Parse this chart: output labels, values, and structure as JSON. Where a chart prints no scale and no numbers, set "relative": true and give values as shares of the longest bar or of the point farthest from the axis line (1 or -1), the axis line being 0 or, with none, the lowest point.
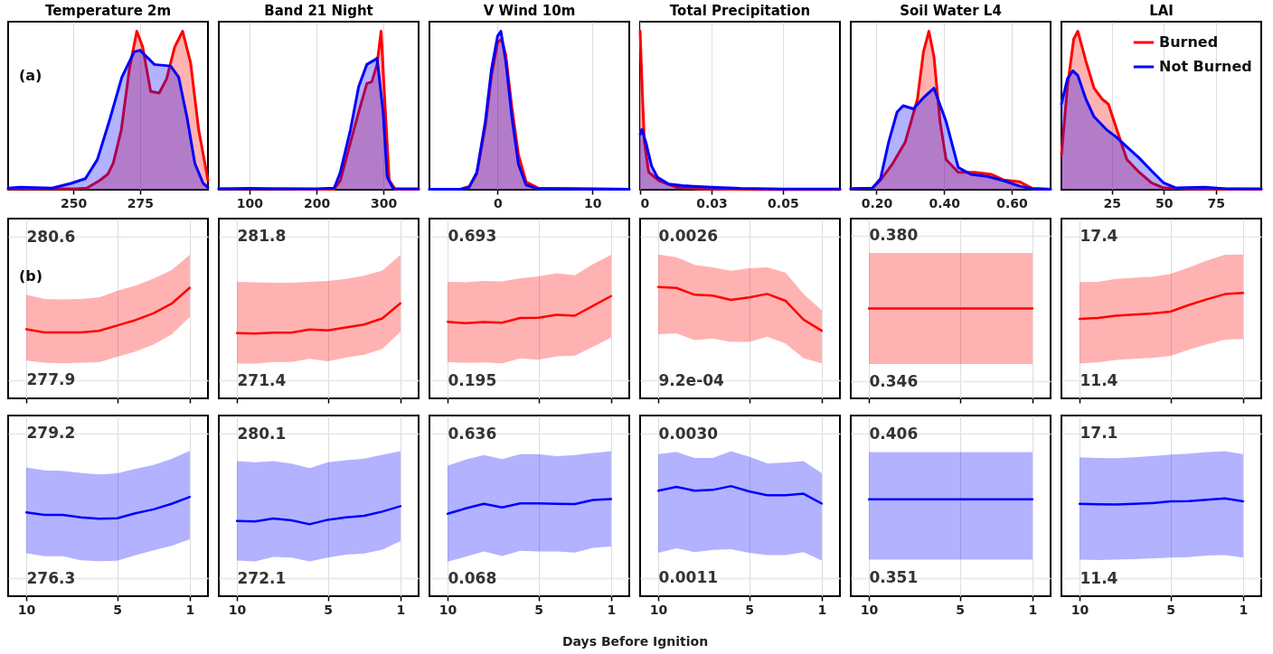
{
  "chart_data": [
    {
      "type": "area",
      "title": "Temperature 2m",
      "relative": true,
      "xlim": [
        225.5,
        300.5
      ],
      "xticks": [
        250,
        275
      ],
      "grid": "x",
      "tick_labels": "x",
      "annotations": [
        "(a)"
      ],
      "series": [
        {
          "color": "#ff0000",
          "x": [
            225.5,
            240,
            250,
            255,
            260,
            263,
            265,
            268,
            271,
            273.8,
            276,
            279,
            282.2,
            285,
            288,
            291,
            294,
            297,
            300.5
          ],
          "values": [
            0.005,
            0.005,
            0.005,
            0.01,
            0.06,
            0.1,
            0.17,
            0.38,
            0.76,
            1.0,
            0.9,
            0.62,
            0.61,
            0.7,
            0.9,
            1.0,
            0.8,
            0.38,
            0.06
          ]
        },
        {
          "color": "#0000ff",
          "x": [
            225.5,
            230,
            236,
            242,
            249.1,
            254.5,
            259,
            263.6,
            268.2,
            272.8,
            275,
            280.4,
            286.5,
            289.5,
            292.6,
            295.6,
            298.7,
            300.5
          ],
          "values": [
            0.01,
            0.015,
            0.013,
            0.01,
            0.04,
            0.07,
            0.19,
            0.44,
            0.71,
            0.87,
            0.88,
            0.79,
            0.78,
            0.71,
            0.46,
            0.165,
            0.04,
            0.013
          ]
        }
      ]
    },
    {
      "type": "area",
      "title": "Band 21 Night",
      "relative": true,
      "xlim": [
        54.4,
        352.3
      ],
      "xticks": [
        100,
        200,
        300
      ],
      "grid": "x",
      "tick_labels": "x",
      "series": [
        {
          "color": "#ff0000",
          "x": [
            54.4,
            100,
            135,
            200,
            226.4,
            235.6,
            250.8,
            262.9,
            275.1,
            282.4,
            290.3,
            296.4,
            302.4,
            308.5,
            317.6,
            352.3
          ],
          "values": [
            0.005,
            0.005,
            0.005,
            0.003,
            0.003,
            0.057,
            0.3,
            0.49,
            0.67,
            0.68,
            0.79,
            1.0,
            0.52,
            0.06,
            0.003,
            0.003
          ]
        },
        {
          "color": "#0000ff",
          "x": [
            54.4,
            100,
            135,
            200,
            226.4,
            235.6,
            250.8,
            262.9,
            275.1,
            287.2,
            290.3,
            299.4,
            305.5,
            314.6,
            352.3
          ],
          "values": [
            0.005,
            0.008,
            0.006,
            0.005,
            0.01,
            0.11,
            0.38,
            0.65,
            0.79,
            0.82,
            0.83,
            0.49,
            0.08,
            0.005,
            0.005
          ]
        }
      ]
    },
    {
      "type": "area",
      "title": "V Wind 10m",
      "relative": true,
      "xlim": [
        -7.2,
        13.9
      ],
      "xticks": [
        0,
        10
      ],
      "grid": "x",
      "tick_labels": "x",
      "series": [
        {
          "color": "#ff0000",
          "x": [
            -7.2,
            -3.9,
            -3.0,
            -2.2,
            -1.3,
            -0.65,
            0,
            0.43,
            0.86,
            1.5,
            2.2,
            3.0,
            4.3,
            13.9
          ],
          "values": [
            0.003,
            0.003,
            0.02,
            0.1,
            0.4,
            0.72,
            0.93,
            0.95,
            0.85,
            0.52,
            0.22,
            0.05,
            0.01,
            0.003
          ]
        },
        {
          "color": "#0000ff",
          "x": [
            -7.2,
            -3.9,
            -3.0,
            -2.2,
            -1.3,
            -0.65,
            0,
            0.34,
            0.86,
            1.5,
            2.2,
            3.0,
            4.3,
            13.9
          ],
          "values": [
            0.003,
            0.003,
            0.016,
            0.11,
            0.43,
            0.76,
            0.97,
            1.0,
            0.81,
            0.46,
            0.16,
            0.03,
            0.005,
            0.003
          ]
        }
      ]
    },
    {
      "type": "area",
      "title": "Total Precipitation",
      "relative": true,
      "xlim": [
        0,
        0.07
      ],
      "xticks": [
        0,
        {
          "value": 0.025,
          "label": "0.03"
        },
        0.05
      ],
      "grid": "x",
      "tick_labels": "x",
      "series": [
        {
          "color": "#ff0000",
          "x": [
            0,
            0.0008,
            0.0015,
            0.003,
            0.0066,
            0.0126,
            0.02,
            0.04,
            0.07
          ],
          "values": [
            1.0,
            0.6,
            0.3,
            0.11,
            0.057,
            0.016,
            0.006,
            0.002,
            0.001
          ]
        },
        {
          "color": "#0000ff",
          "x": [
            0,
            0.0006,
            0.002,
            0.004,
            0.006,
            0.01,
            0.015,
            0.025,
            0.035,
            0.05,
            0.07
          ],
          "values": [
            0.35,
            0.38,
            0.3,
            0.15,
            0.08,
            0.035,
            0.025,
            0.015,
            0.008,
            0.004,
            0.004
          ]
        }
      ]
    },
    {
      "type": "area",
      "title": "Soil Water L4",
      "relative": true,
      "xlim": [
        0.124,
        0.715
      ],
      "xticks": [
        {
          "value": 0.2,
          "label": "0.20"
        },
        {
          "value": 0.4,
          "label": "0.40"
        },
        {
          "value": 0.6,
          "label": "0.60"
        }
      ],
      "grid": "x",
      "tick_labels": "x",
      "series": [
        {
          "color": "#ff0000",
          "x": [
            0.124,
            0.188,
            0.212,
            0.248,
            0.285,
            0.321,
            0.339,
            0.355,
            0.37,
            0.388,
            0.406,
            0.442,
            0.491,
            0.539,
            0.576,
            0.624,
            0.661,
            0.715
          ],
          "values": [
            0.005,
            0.01,
            0.06,
            0.165,
            0.3,
            0.57,
            0.87,
            1.0,
            0.84,
            0.43,
            0.19,
            0.11,
            0.11,
            0.097,
            0.062,
            0.05,
            0.008,
            0.003
          ]
        },
        {
          "color": "#0000ff",
          "x": [
            0.124,
            0.188,
            0.212,
            0.236,
            0.261,
            0.279,
            0.309,
            0.339,
            0.37,
            0.406,
            0.442,
            0.479,
            0.527,
            0.576,
            0.624,
            0.661,
            0.715
          ],
          "values": [
            0.005,
            0.01,
            0.07,
            0.3,
            0.49,
            0.53,
            0.51,
            0.58,
            0.64,
            0.43,
            0.14,
            0.097,
            0.084,
            0.057,
            0.022,
            0.006,
            0.003
          ]
        }
      ]
    },
    {
      "type": "area",
      "title": "LAI",
      "relative": true,
      "xlim": [
        0.8,
        96.9
      ],
      "xticks": [
        25,
        50,
        75
      ],
      "grid": "x",
      "tick_labels": "x",
      "legend": "top right",
      "series": [
        {
          "name": "Burned",
          "color": "#ff0000",
          "x": [
            0.8,
            3.7,
            6.7,
            8.7,
            12.6,
            16.5,
            20.5,
            23.4,
            27.4,
            32.3,
            38.2,
            44.1,
            50,
            61.8,
            96.9
          ],
          "values": [
            0.22,
            0.65,
            0.95,
            1.0,
            0.81,
            0.64,
            0.57,
            0.54,
            0.38,
            0.19,
            0.11,
            0.043,
            0.011,
            0.005,
            0.003
          ]
        },
        {
          "name": "Not Burned",
          "color": "#0000ff",
          "x": [
            0.8,
            3.7,
            6.3,
            8.7,
            12.6,
            16.5,
            22.4,
            27.4,
            32.3,
            38.2,
            44.1,
            50,
            55.9,
            69.7,
            81.5,
            96.9
          ],
          "values": [
            0.54,
            0.7,
            0.75,
            0.72,
            0.57,
            0.46,
            0.38,
            0.33,
            0.27,
            0.2,
            0.12,
            0.043,
            0.011,
            0.016,
            0.005,
            0.005
          ]
        }
      ]
    },
    {
      "type": "line",
      "x": [
        10,
        9,
        8,
        7,
        6,
        5,
        4,
        3,
        2,
        1
      ],
      "xlim": [
        11,
        0
      ],
      "xticks": [
        10,
        5,
        1
      ],
      "ylim": [
        277.56,
        280.94
      ],
      "yticks": [
        277.9,
        280.6
      ],
      "grid": true,
      "tick_labels": "y",
      "annotations": [
        "(b)"
      ],
      "series": [
        {
          "color": "#ff0000",
          "values": [
            278.86,
            278.8,
            278.8,
            278.8,
            278.83,
            278.93,
            279.03,
            279.16,
            279.34,
            279.64
          ],
          "lower": [
            278.27,
            278.23,
            278.22,
            278.23,
            278.24,
            278.34,
            278.44,
            278.57,
            278.76,
            279.09
          ],
          "upper": [
            279.51,
            279.43,
            279.42,
            279.43,
            279.46,
            279.58,
            279.68,
            279.81,
            279.97,
            280.26
          ]
        }
      ]
    },
    {
      "type": "line",
      "x": [
        10,
        9,
        8,
        7,
        6,
        5,
        4,
        3,
        2,
        1
      ],
      "xlim": [
        11,
        0
      ],
      "xticks": [
        10,
        5,
        1
      ],
      "ylim": [
        270.1,
        283.1
      ],
      "yticks": [
        271.4,
        281.8
      ],
      "grid": true,
      "tick_labels": "y",
      "series": [
        {
          "color": "#ff0000",
          "values": [
            274.82,
            274.79,
            274.85,
            274.85,
            275.08,
            275.02,
            275.23,
            275.44,
            275.88,
            276.97
          ],
          "lower": [
            272.61,
            272.61,
            272.73,
            272.73,
            272.96,
            272.78,
            273.05,
            273.26,
            273.67,
            274.91
          ],
          "upper": [
            278.53,
            278.5,
            278.47,
            278.47,
            278.53,
            278.59,
            278.74,
            278.97,
            279.35,
            280.47
          ]
        }
      ]
    },
    {
      "type": "line",
      "x": [
        10,
        9,
        8,
        7,
        6,
        5,
        4,
        3,
        2,
        1
      ],
      "xlim": [
        11,
        0
      ],
      "xticks": [
        10,
        5,
        1
      ],
      "ylim": [
        0.133,
        0.755
      ],
      "yticks": [
        0.195,
        0.693
      ],
      "grid": true,
      "tick_labels": "y",
      "series": [
        {
          "color": "#ff0000",
          "values": [
            0.398,
            0.393,
            0.397,
            0.395,
            0.411,
            0.412,
            0.422,
            0.419,
            0.453,
            0.487
          ],
          "lower": [
            0.259,
            0.256,
            0.257,
            0.254,
            0.271,
            0.267,
            0.278,
            0.281,
            0.311,
            0.343
          ],
          "upper": [
            0.536,
            0.535,
            0.539,
            0.538,
            0.549,
            0.555,
            0.566,
            0.559,
            0.597,
            0.63
          ]
        }
      ]
    },
    {
      "type": "line",
      "x": [
        10,
        9,
        8,
        7,
        6,
        5,
        4,
        3,
        2,
        1
      ],
      "xlim": [
        11,
        0
      ],
      "xticks": [
        10,
        5,
        1
      ],
      "ylim": [
        0.00071,
        0.00281
      ],
      "yticks": [
        {
          "value": 0.00092,
          "label": "9.2e-04"
        },
        0.0026
      ],
      "grid": true,
      "tick_labels": "y",
      "series": [
        {
          "color": "#ff0000",
          "values": [
            0.00201,
            0.002,
            0.00192,
            0.00191,
            0.00186,
            0.00189,
            0.00193,
            0.00185,
            0.00163,
            0.0015
          ],
          "lower": [
            0.00146,
            0.00147,
            0.00139,
            0.00141,
            0.00137,
            0.00137,
            0.00143,
            0.00135,
            0.00118,
            0.00112
          ],
          "upper": [
            0.00239,
            0.00236,
            0.00227,
            0.00224,
            0.0022,
            0.00223,
            0.00224,
            0.00218,
            0.00193,
            0.00174
          ]
        }
      ]
    },
    {
      "type": "line",
      "x": [
        10,
        9,
        8,
        7,
        6,
        5,
        4,
        3,
        2,
        1
      ],
      "xlim": [
        11,
        0
      ],
      "xticks": [
        10,
        5,
        1
      ],
      "ylim": [
        0.342,
        0.384
      ],
      "yticks": [
        0.346,
        {
          "value": 0.38,
          "label": "0.380"
        }
      ],
      "grid": true,
      "tick_labels": "y",
      "series": [
        {
          "color": "#ff0000",
          "values": [
            0.363,
            0.363,
            0.363,
            0.363,
            0.363,
            0.363,
            0.363,
            0.363,
            0.363,
            0.363
          ],
          "lower": [
            0.35,
            0.35,
            0.35,
            0.35,
            0.35,
            0.35,
            0.35,
            0.35,
            0.35,
            0.35
          ],
          "upper": [
            0.376,
            0.376,
            0.376,
            0.376,
            0.376,
            0.376,
            0.376,
            0.376,
            0.376,
            0.376
          ]
        }
      ]
    },
    {
      "type": "line",
      "x": [
        10,
        9,
        8,
        7,
        6,
        5,
        4,
        3,
        2,
        1
      ],
      "xlim": [
        11,
        0
      ],
      "xticks": [
        10,
        5,
        1
      ],
      "ylim": [
        10.65,
        18.15
      ],
      "yticks": [
        11.4,
        17.4
      ],
      "grid": true,
      "tick_labels": "y",
      "series": [
        {
          "color": "#ff0000",
          "values": [
            13.97,
            14.0,
            14.1,
            14.15,
            14.19,
            14.27,
            14.54,
            14.78,
            15.0,
            15.05
          ],
          "lower": [
            12.11,
            12.15,
            12.25,
            12.3,
            12.34,
            12.42,
            12.68,
            12.9,
            13.1,
            13.13
          ],
          "upper": [
            15.5,
            15.51,
            15.63,
            15.68,
            15.72,
            15.84,
            16.11,
            16.4,
            16.64,
            16.65
          ]
        }
      ]
    },
    {
      "type": "line",
      "x": [
        10,
        9,
        8,
        7,
        6,
        5,
        4,
        3,
        2,
        1
      ],
      "xlim": [
        11,
        0
      ],
      "xticks": [
        10,
        5,
        1
      ],
      "ylim": [
        275.94,
        279.56
      ],
      "yticks": [
        276.3,
        279.2
      ],
      "grid": true,
      "series": [
        {
          "color": "#0000ff",
          "values": [
            277.62,
            277.57,
            277.57,
            277.52,
            277.49,
            277.5,
            277.6,
            277.68,
            277.79,
            277.93
          ],
          "lower": [
            276.8,
            276.74,
            276.74,
            276.66,
            276.64,
            276.65,
            276.76,
            276.86,
            276.95,
            277.08
          ],
          "upper": [
            278.52,
            278.46,
            278.45,
            278.41,
            278.38,
            278.4,
            278.49,
            278.57,
            278.69,
            278.85
          ]
        }
      ]
    },
    {
      "type": "line",
      "x": [
        10,
        9,
        8,
        7,
        6,
        5,
        4,
        3,
        2,
        1
      ],
      "xlim": [
        11,
        0
      ],
      "xticks": [
        10,
        5,
        1
      ],
      "ylim": [
        271.1,
        281.1
      ],
      "yticks": [
        272.1,
        280.1
      ],
      "grid": true,
      "series": [
        {
          "color": "#0000ff",
          "values": [
            275.26,
            275.24,
            275.4,
            275.3,
            275.08,
            275.33,
            275.46,
            275.55,
            275.78,
            276.08
          ],
          "lower": [
            273.08,
            273.03,
            273.28,
            273.24,
            273.03,
            273.24,
            273.4,
            273.46,
            273.67,
            274.15
          ],
          "upper": [
            278.58,
            278.51,
            278.58,
            278.44,
            278.19,
            278.51,
            278.62,
            278.71,
            278.92,
            279.12
          ]
        }
      ]
    },
    {
      "type": "line",
      "x": [
        10,
        9,
        8,
        7,
        6,
        5,
        4,
        3,
        2,
        1
      ],
      "xlim": [
        11,
        0
      ],
      "xticks": [
        10,
        5,
        1
      ],
      "ylim": [
        -0.003,
        0.707
      ],
      "yticks": [
        0.068,
        0.636
      ],
      "grid": true,
      "series": [
        {
          "color": "#0000ff",
          "values": [
            0.321,
            0.342,
            0.36,
            0.346,
            0.362,
            0.362,
            0.36,
            0.359,
            0.375,
            0.379
          ],
          "lower": [
            0.133,
            0.152,
            0.173,
            0.155,
            0.175,
            0.173,
            0.173,
            0.168,
            0.187,
            0.192
          ],
          "upper": [
            0.51,
            0.534,
            0.552,
            0.536,
            0.555,
            0.555,
            0.547,
            0.552,
            0.56,
            0.567
          ]
        }
      ]
    },
    {
      "type": "line",
      "x": [
        10,
        9,
        8,
        7,
        6,
        5,
        4,
        3,
        2,
        1
      ],
      "xlim": [
        11,
        0
      ],
      "xticks": [
        10,
        5,
        1
      ],
      "ylim": [
        0.00086,
        0.00324
      ],
      "yticks": [
        0.0011,
        {
          "value": 0.003,
          "label": "0.0030"
        }
      ],
      "grid": true,
      "xlabel": "Days Before Ignition",
      "series": [
        {
          "color": "#0000ff",
          "values": [
            0.00225,
            0.0023,
            0.00225,
            0.00226,
            0.00231,
            0.00224,
            0.00219,
            0.00219,
            0.00221,
            0.00208
          ],
          "lower": [
            0.00143,
            0.00149,
            0.00144,
            0.00147,
            0.00148,
            0.00143,
            0.0014,
            0.0014,
            0.00144,
            0.00133
          ],
          "upper": [
            0.00273,
            0.00276,
            0.00268,
            0.00268,
            0.00277,
            0.0027,
            0.00261,
            0.00262,
            0.00264,
            0.00248
          ]
        }
      ]
    },
    {
      "type": "line",
      "x": [
        10,
        9,
        8,
        7,
        6,
        5,
        4,
        3,
        2,
        1
      ],
      "xlim": [
        11,
        0
      ],
      "xticks": [
        10,
        5,
        1
      ],
      "ylim": [
        0.344,
        0.413
      ],
      "yticks": [
        0.351,
        0.406
      ],
      "grid": true,
      "series": [
        {
          "color": "#0000ff",
          "values": [
            0.381,
            0.381,
            0.381,
            0.381,
            0.381,
            0.381,
            0.381,
            0.381,
            0.381,
            0.381
          ],
          "lower": [
            0.358,
            0.358,
            0.358,
            0.358,
            0.358,
            0.358,
            0.358,
            0.358,
            0.358,
            0.358
          ],
          "upper": [
            0.399,
            0.399,
            0.399,
            0.399,
            0.399,
            0.399,
            0.399,
            0.399,
            0.399,
            0.399
          ]
        }
      ]
    },
    {
      "type": "line",
      "x": [
        10,
        9,
        8,
        7,
        6,
        5,
        4,
        3,
        2,
        1
      ],
      "xlim": [
        11,
        0
      ],
      "xticks": [
        10,
        5,
        1
      ],
      "ylim": [
        10.69,
        17.81
      ],
      "yticks": [
        11.4,
        17.1
      ],
      "grid": true,
      "series": [
        {
          "color": "#0000ff",
          "values": [
            14.33,
            14.31,
            14.3,
            14.33,
            14.36,
            14.43,
            14.44,
            14.49,
            14.54,
            14.43
          ],
          "lower": [
            12.13,
            12.11,
            12.13,
            12.15,
            12.18,
            12.21,
            12.23,
            12.29,
            12.31,
            12.21
          ],
          "upper": [
            16.16,
            16.14,
            16.13,
            16.16,
            16.21,
            16.27,
            16.31,
            16.37,
            16.4,
            16.29
          ]
        }
      ]
    }
  ]
}
